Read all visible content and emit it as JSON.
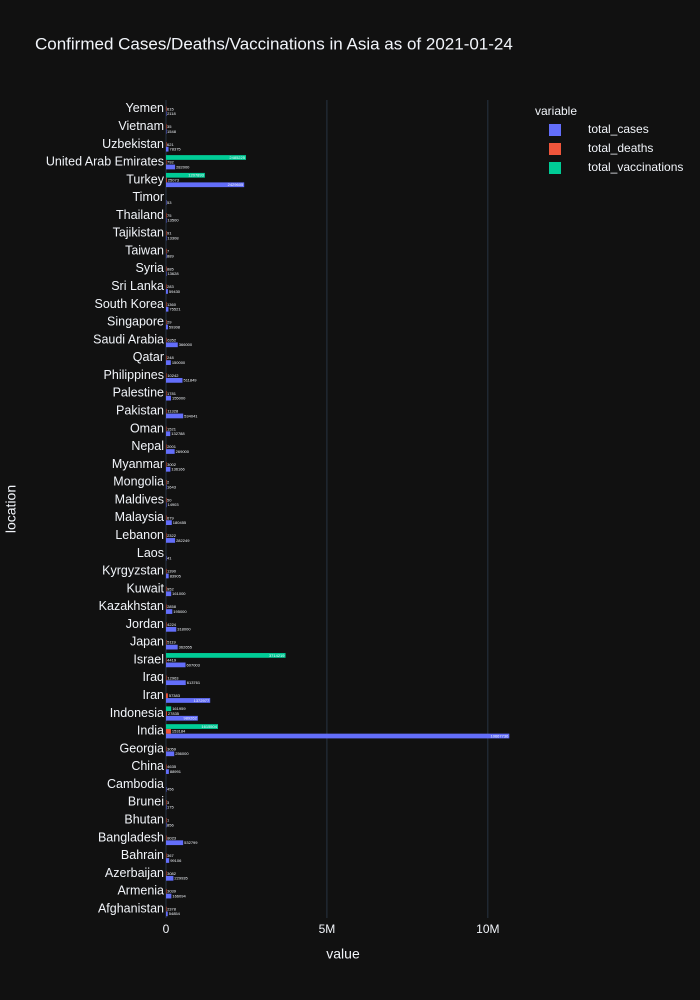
{
  "chart_data": {
    "type": "bar",
    "orientation": "horizontal",
    "title": "Confirmed Cases/Deaths/Vaccinations in Asia as of 2021-01-24",
    "x_label": "value",
    "y_label": "location",
    "legend_title": "variable",
    "legend_position": "top-right",
    "grid": true,
    "categories": [
      "Afghanistan",
      "Armenia",
      "Azerbaijan",
      "Bahrain",
      "Bangladesh",
      "Bhutan",
      "Brunei",
      "Cambodia",
      "China",
      "Georgia",
      "India",
      "Indonesia",
      "Iran",
      "Iraq",
      "Israel",
      "Japan",
      "Jordan",
      "Kazakhstan",
      "Kuwait",
      "Kyrgyzstan",
      "Laos",
      "Lebanon",
      "Malaysia",
      "Maldives",
      "Mongolia",
      "Myanmar",
      "Nepal",
      "Oman",
      "Pakistan",
      "Palestine",
      "Philippines",
      "Qatar",
      "Saudi Arabia",
      "Singapore",
      "South Korea",
      "Sri Lanka",
      "Syria",
      "Taiwan",
      "Tajikistan",
      "Thailand",
      "Timor",
      "Turkey",
      "United Arab Emirates",
      "Uzbekistan",
      "Vietnam",
      "Yemen"
    ],
    "series": [
      {
        "name": "total_cases",
        "color": "#636efa",
        "values": [
          54854,
          166094,
          229935,
          99106,
          532799,
          856,
          175,
          456,
          88991,
          256000,
          10667736,
          989262,
          1372977,
          613761,
          607003,
          362655,
          318000,
          195000,
          161000,
          83905,
          41,
          282249,
          180455,
          14903,
          1643,
          136166,
          269000,
          132788,
          534041,
          155000,
          511849,
          150000,
          366000,
          59308,
          75521,
          59430,
          13628,
          889,
          13308,
          13500,
          53,
          2429605,
          282000,
          78375,
          1548,
          2118
        ]
      },
      {
        "name": "total_deaths",
        "color": "#EF553B",
        "values": [
          2378,
          3039,
          3082,
          367,
          8023,
          1,
          3,
          null,
          4635,
          3059,
          153184,
          27835,
          57383,
          12963,
          4419,
          5119,
          4224,
          2858,
          952,
          1390,
          null,
          2322,
          679,
          50,
          2,
          3002,
          2001,
          1521,
          11328,
          1781,
          10242,
          248,
          6352,
          29,
          1360,
          283,
          885,
          7,
          91,
          75,
          null,
          25073,
          792,
          621,
          35,
          615
        ]
      },
      {
        "name": "total_vaccinations",
        "color": "#00cc96",
        "values": [
          null,
          null,
          null,
          null,
          null,
          null,
          null,
          null,
          null,
          null,
          1615504,
          161959,
          null,
          null,
          3714219,
          null,
          null,
          null,
          null,
          null,
          null,
          null,
          null,
          null,
          null,
          null,
          null,
          null,
          null,
          null,
          null,
          null,
          null,
          null,
          null,
          null,
          null,
          null,
          null,
          null,
          null,
          1207893,
          2485225,
          null,
          null,
          null
        ]
      }
    ],
    "xlim": [
      0,
      11000000
    ],
    "xticks": [
      0,
      {
        "value": 5000000,
        "label": "5M"
      },
      {
        "value": 10000000,
        "label": "10M"
      }
    ]
  }
}
